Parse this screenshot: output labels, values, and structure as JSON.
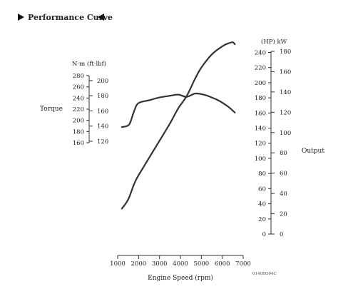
{
  "header": {
    "title": "Performance Curve"
  },
  "labels": {
    "torque": "Torque",
    "output": "Output",
    "torque_units": "N·m (ft·lbf)",
    "output_units": "(HP) kW",
    "figure_code": "0140EO04C"
  },
  "chart_data": {
    "type": "line",
    "xlabel": "Engine Speed (rpm)",
    "x_ticks": [
      1000,
      2000,
      3000,
      4000,
      5000,
      6000,
      7000
    ],
    "xlim": [
      1000,
      7000
    ],
    "torque_axis": {
      "nm_ticks": [
        280,
        260,
        240,
        220,
        200,
        180,
        160
      ],
      "ftlbf_ticks": [
        200,
        180,
        160,
        140,
        120
      ],
      "nm_range": [
        160,
        280
      ]
    },
    "output_axis": {
      "hp_ticks": [
        240,
        220,
        200,
        180,
        160,
        140,
        120,
        100,
        80,
        60,
        40,
        20,
        0
      ],
      "kw_ticks": [
        180,
        160,
        140,
        120,
        100,
        80,
        60,
        40,
        20,
        0
      ],
      "kw_range": [
        0,
        180
      ]
    },
    "series": [
      {
        "axis": "torque",
        "x": [
          1200,
          1450,
          1600,
          1800,
          2000,
          2500,
          3000,
          3500,
          3900,
          4300,
          4700,
          5100,
          5500,
          5900,
          6300,
          6600
        ],
        "y": [
          188,
          190,
          196,
          218,
          231,
          236,
          241,
          244,
          246,
          242,
          248,
          246,
          241,
          234,
          224,
          214
        ]
      },
      {
        "axis": "output",
        "x": [
          1200,
          1500,
          1800,
          2000,
          2500,
          3000,
          3500,
          3900,
          4300,
          4700,
          5000,
          5500,
          6000,
          6300,
          6500,
          6600
        ],
        "y": [
          25,
          34,
          50,
          58,
          75,
          92,
          109,
          124,
          136,
          153,
          164,
          177,
          185,
          188,
          189,
          187
        ]
      }
    ]
  }
}
